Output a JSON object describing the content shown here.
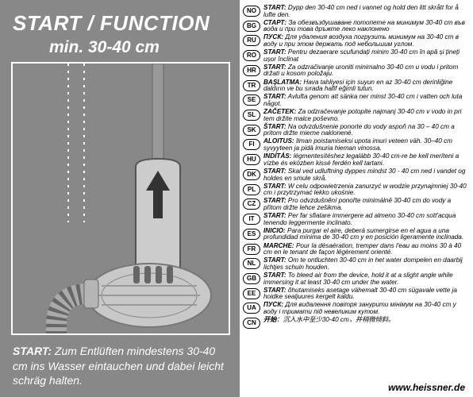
{
  "left": {
    "title_main": "START / FUNCTION",
    "title_sub": "min. 30-40 cm",
    "footer_label": "START:",
    "footer_text": " Zum Entlüften mindestens 30-40 cm ins Wasser eintauchen und dabei leicht schräg halten.",
    "panel_bg": "#888888",
    "text_color": "#ffffff"
  },
  "url": "www.heissner.de",
  "languages": [
    {
      "code": "NO",
      "label": "START:",
      "text": " Dypp den 30-40 cm ned i vannet og hold den litt skrått for å lufte den."
    },
    {
      "code": "BG",
      "label": "СТАРТ:",
      "text": " За обезвъздушаване потопете на минимум 30-40 cm във вода и при това дръжте леко наклонено"
    },
    {
      "code": "RU",
      "label": "ПУСК:",
      "text": " Для удаления воздуха погрузить минимум на 30-40 cm в воду и при этом держать под небольшим углом."
    },
    {
      "code": "RO",
      "label": "START:",
      "text": " Pentru dezaerare scufundați minim 30-40 cm în apă și țineți ușor înclinat"
    },
    {
      "code": "HR",
      "label": "START:",
      "text": " Za odzračivanje uroniti minimalno 30-40 cm u vodu i pritom držati u kosom položaju."
    },
    {
      "code": "TR",
      "label": "BAŞLATMA:",
      "text": " Hava tahliyesi için suyun en az 30-40 cm derinliğine daldırın ve bu sırada hafif eğimli tutun."
    },
    {
      "code": "SE",
      "label": "START:",
      "text": " Avlufta genom att sänka ner minst 30-40 cm i vatten och luta något."
    },
    {
      "code": "SL",
      "label": "ZAČETEK:",
      "text": " Za odzračevanje potopite najmanj 30-40 cm v vodo in pri tem držite malce poševno."
    },
    {
      "code": "SK",
      "label": "ŠTART:",
      "text": " Na odvzdušnenie ponorte do vody aspoň na 30 – 40 cm a pritom držte mierne naklonené."
    },
    {
      "code": "FI",
      "label": "ALOITUS:",
      "text": " Ilman poistamiseksi upota imuri veteen väh. 30–40 cm syvyyteen ja pidä imuria hieman vinossa."
    },
    {
      "code": "HU",
      "label": "INDÍTÁS:",
      "text": " légmentesítéshez legalább 30-40 cm-re be kell meríteni a vízbe és eközben kissé ferdén kell tartani."
    },
    {
      "code": "DK",
      "label": "START:",
      "text": " Skal ved udluftning dyppes mindst 30 - 40 cm ned i vandet og holdes en smule skrå."
    },
    {
      "code": "PL",
      "label": "START:",
      "text": " W celu odpowietrzenia zanurzyć w wodzie przynajmniej 30-40 cm i przytrzymać lekko ukośnie."
    },
    {
      "code": "CZ",
      "label": "START:",
      "text": " Pro odvzdušnění ponořte minimálně 30-40 cm do vody a přitom držte lehce zešikma."
    },
    {
      "code": "IT",
      "label": "START:",
      "text": " Per far sfiatare immergere ad almeno 30-40 cm sott'acqua tenendo leggermente inclinato."
    },
    {
      "code": "ES",
      "label": "INICIO:",
      "text": " Para purgar el aire, deberá sumergirse en el agua a una profundidad mínima de 30-40 cm y en posición ligeramente inclinada."
    },
    {
      "code": "FR",
      "label": "MARCHE:",
      "text": " Pour la désaération, tremper dans l'eau au moins 30 à 40 cm en le tenant de façon légèrement orienté."
    },
    {
      "code": "NL",
      "label": "START:",
      "text": " Om te ontluchten 30-40 cm in het water dompelen en daarbij lichtjes schuin houden."
    },
    {
      "code": "GB",
      "label": "START:",
      "text": " To bleed air from the device, hold it at a slight angle while immersing it at least 30-40 cm under the water."
    },
    {
      "code": "EE",
      "label": "START:",
      "text": " õhutamiseks asetage vähemalt 30-40 cm sügavale vette ja hoidke sealjuures kergelt kaldu."
    },
    {
      "code": "UA",
      "label": "ПУСК:",
      "text": " Для видалення повітря занурити мінімум на 30-40 cm у воду і тримати під невеликим кутом."
    },
    {
      "code": "CN",
      "label": "开始",
      "text": "：沉入水中至少30-40 cm，并稍微倾斜。"
    }
  ]
}
